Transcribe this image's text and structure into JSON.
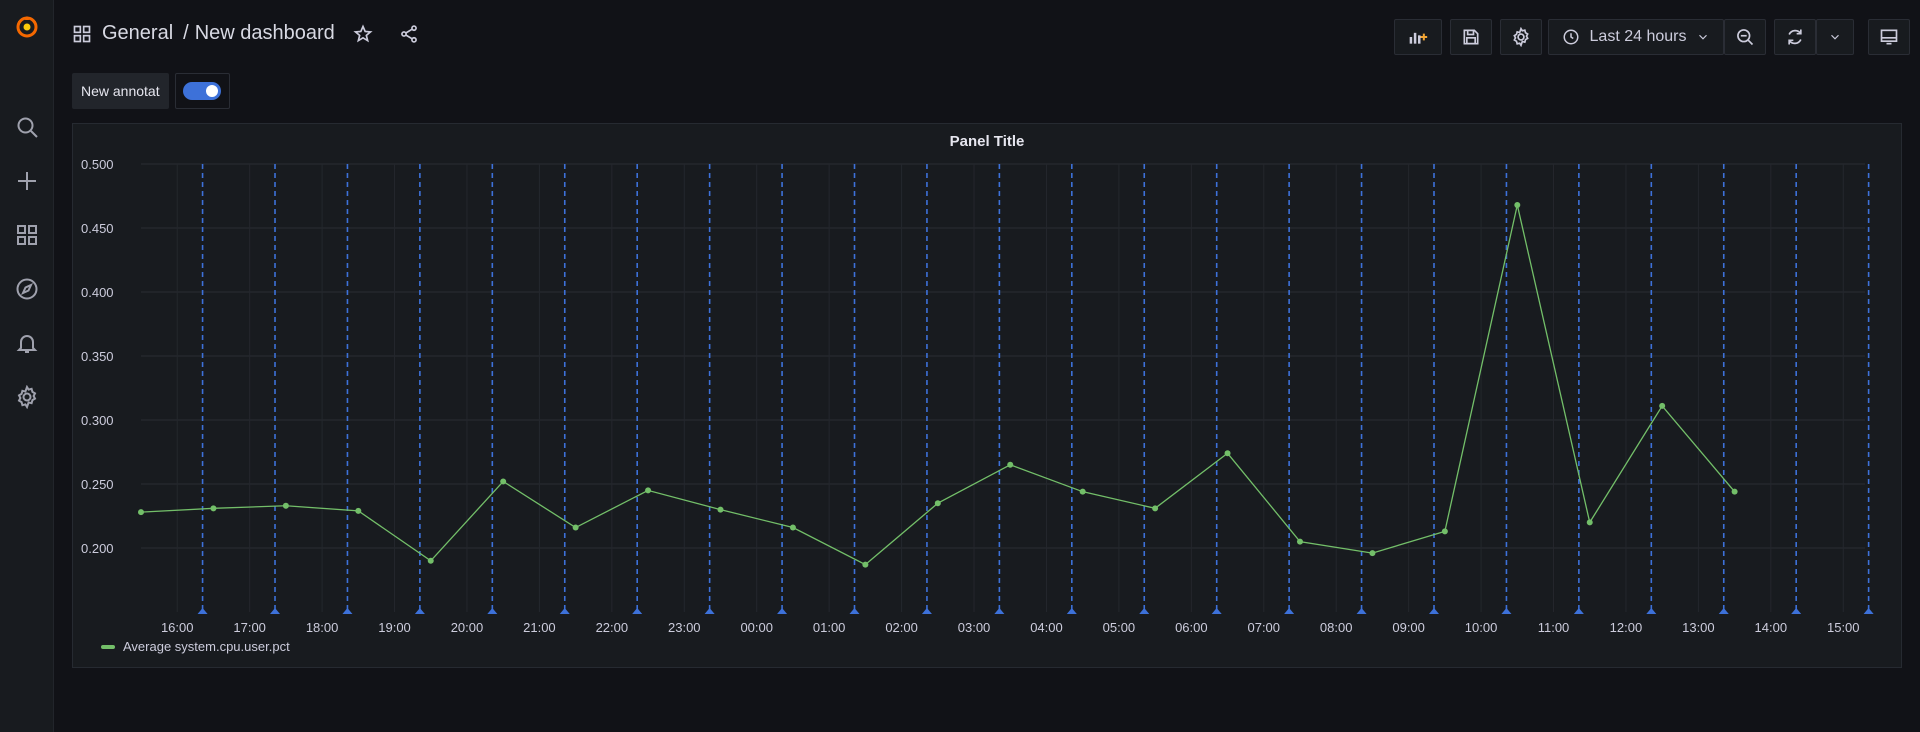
{
  "sidebar": {
    "items": [
      "grafana-logo-icon",
      "search-icon",
      "plus-icon",
      "dashboards-icon",
      "explore-icon",
      "bell-icon",
      "gear-icon"
    ]
  },
  "header": {
    "folder": "General",
    "separator": "/",
    "dashboard_title": "New dashboard",
    "time_range": "Last 24 hours"
  },
  "annotation": {
    "label": "New annotat",
    "enabled": true
  },
  "colors": {
    "accent": "#3d71d9",
    "series": "#73bf69",
    "annotation": "#3d71d9",
    "background": "#111217",
    "panel": "#181b1f"
  },
  "panel": {
    "title": "Panel Title"
  },
  "chart_data": {
    "type": "line",
    "title": "Panel Title",
    "y_ticks": [
      "0.200",
      "0.250",
      "0.300",
      "0.350",
      "0.400",
      "0.450",
      "0.500"
    ],
    "y_tick_values": [
      0.2,
      0.25,
      0.3,
      0.35,
      0.4,
      0.45,
      0.5
    ],
    "ylim": [
      0.15,
      0.5
    ],
    "x_ticks": [
      "16:00",
      "17:00",
      "18:00",
      "19:00",
      "20:00",
      "21:00",
      "22:00",
      "23:00",
      "00:00",
      "01:00",
      "02:00",
      "03:00",
      "04:00",
      "05:00",
      "06:00",
      "07:00",
      "08:00",
      "09:00",
      "10:00",
      "11:00",
      "12:00",
      "13:00",
      "14:00",
      "15:00"
    ],
    "x_tick_hours": [
      16,
      17,
      18,
      19,
      20,
      21,
      22,
      23,
      24,
      25,
      26,
      27,
      28,
      29,
      30,
      31,
      32,
      33,
      34,
      35,
      36,
      37,
      38,
      39
    ],
    "xlim_hours": [
      15.5,
      39.3
    ],
    "series": [
      {
        "name": "Average system.cpu.user.pct",
        "x_hours": [
          15.5,
          16.5,
          17.5,
          18.5,
          19.5,
          20.5,
          21.5,
          22.5,
          23.5,
          24.5,
          25.5,
          26.5,
          27.5,
          28.5,
          29.5,
          30.5,
          31.5,
          32.5,
          33.5,
          34.5,
          35.5,
          36.5,
          37.5
        ],
        "values": [
          0.228,
          0.231,
          0.233,
          0.229,
          0.19,
          0.252,
          0.216,
          0.245,
          0.23,
          0.216,
          0.187,
          0.235,
          0.265,
          0.244,
          0.231,
          0.274,
          0.205,
          0.196,
          0.213,
          0.468,
          0.22,
          0.311,
          0.244
        ]
      }
    ],
    "annotation_x_hours": [
      16.35,
      17.35,
      18.35,
      19.35,
      20.35,
      21.35,
      22.35,
      23.35,
      24.35,
      25.35,
      26.35,
      27.35,
      28.35,
      29.35,
      30.35,
      31.35,
      32.35,
      33.35,
      34.35,
      35.35,
      36.35,
      37.35,
      38.35,
      39.35
    ],
    "legend": {
      "placement": "bottom-left",
      "entries": [
        "Average system.cpu.user.pct"
      ]
    },
    "grid": true
  }
}
